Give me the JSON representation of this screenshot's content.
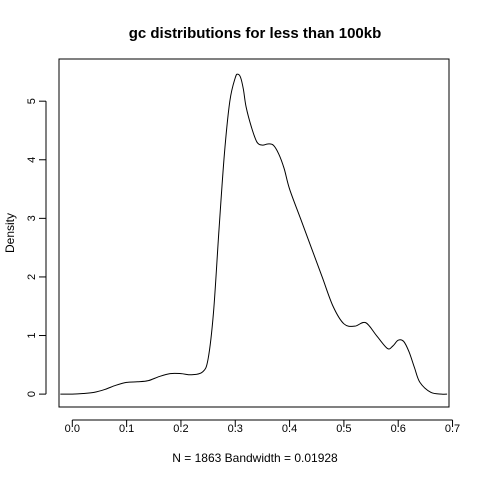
{
  "chart_data": {
    "type": "line",
    "title": "gc distributions for less than 100kb",
    "xlabel": "N = 1863   Bandwidth = 0.01928",
    "ylabel": "Density",
    "xlim": [
      -0.0245,
      0.6935
    ],
    "ylim": [
      -0.22,
      5.72
    ],
    "x_ticks": [
      0.0,
      0.1,
      0.2,
      0.3,
      0.4,
      0.5,
      0.6,
      0.7
    ],
    "x_tick_labels": [
      "0.0",
      "0.1",
      "0.2",
      "0.3",
      "0.4",
      "0.5",
      "0.6",
      "0.7"
    ],
    "y_ticks": [
      0,
      1,
      2,
      3,
      4,
      5
    ],
    "y_tick_labels": [
      "0",
      "1",
      "2",
      "3",
      "4",
      "5"
    ],
    "grid": false,
    "legend": "none",
    "line_color": "#000000",
    "series": [
      {
        "x": [
          -0.022,
          0.0,
          0.02,
          0.04,
          0.06,
          0.08,
          0.1,
          0.12,
          0.14,
          0.16,
          0.18,
          0.2,
          0.22,
          0.24,
          0.25,
          0.26,
          0.27,
          0.28,
          0.29,
          0.3,
          0.305,
          0.31,
          0.315,
          0.32,
          0.33,
          0.34,
          0.35,
          0.36,
          0.37,
          0.38,
          0.39,
          0.4,
          0.42,
          0.44,
          0.46,
          0.48,
          0.5,
          0.52,
          0.54,
          0.56,
          0.58,
          0.59,
          0.6,
          0.61,
          0.62,
          0.63,
          0.64,
          0.66,
          0.68,
          0.69
        ],
        "y": [
          0.0,
          0.0,
          0.01,
          0.03,
          0.08,
          0.15,
          0.2,
          0.21,
          0.23,
          0.3,
          0.35,
          0.35,
          0.33,
          0.38,
          0.6,
          1.4,
          2.8,
          4.1,
          5.0,
          5.4,
          5.46,
          5.4,
          5.2,
          4.9,
          4.55,
          4.3,
          4.25,
          4.27,
          4.25,
          4.1,
          3.85,
          3.5,
          3.0,
          2.5,
          2.0,
          1.5,
          1.2,
          1.16,
          1.22,
          1.0,
          0.78,
          0.82,
          0.92,
          0.9,
          0.72,
          0.45,
          0.2,
          0.03,
          0.0,
          0.0
        ]
      }
    ]
  }
}
